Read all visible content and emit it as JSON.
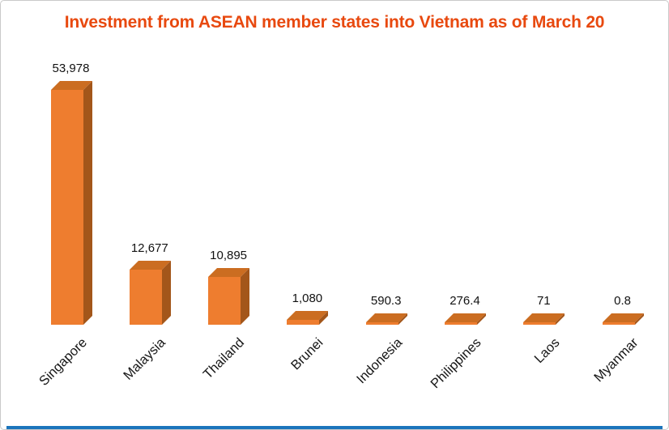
{
  "title": "Investment from ASEAN member states into Vietnam as of March 20",
  "colors": {
    "title": "#e8490f",
    "bar_front": "#ee7d2f",
    "bar_side": "#a3561a",
    "bar_top": "#cb6d21",
    "value_label": "#121212",
    "category_label": "#161616",
    "bottom_line": "#1b75bc",
    "border": "#c9c9c9",
    "background": "#ffffff"
  },
  "chart_data": {
    "type": "bar",
    "style": "3d-orange-bars",
    "title": "Investment from ASEAN member states into Vietnam as of March 20",
    "categories": [
      "Singapore",
      "Malaysia",
      "Thailand",
      "Brunei",
      "Indonesia",
      "Philippines",
      "Laos",
      "Myanmar"
    ],
    "values": [
      53978,
      12677,
      10895,
      1080,
      590.3,
      276.4,
      71,
      0.8
    ],
    "value_labels": [
      "53,978",
      "12,677",
      "10,895",
      "1,080",
      "590.3",
      "276.4",
      "71",
      "0.8"
    ],
    "xlabel": "",
    "ylabel": "",
    "ylim": [
      0,
      56000
    ],
    "grid": false,
    "legend": "none",
    "category_label_rotation_deg": -45
  }
}
